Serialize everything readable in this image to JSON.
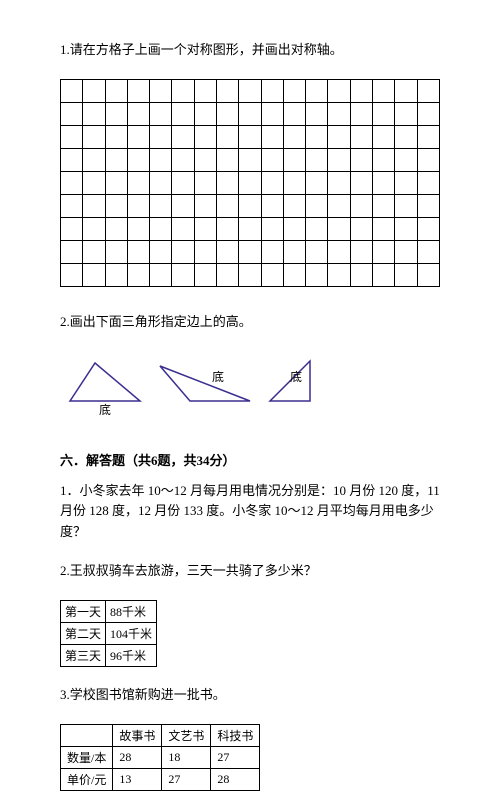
{
  "q1": {
    "text": "1.请在方格子上画一个对称图形，并画出对称轴。",
    "grid": {
      "rows": 9,
      "cols": 17
    }
  },
  "q2": {
    "text": "2.画出下面三角形指定边上的高。",
    "labels": {
      "base": "底"
    },
    "stroke": "#3a2e8f"
  },
  "section6": {
    "header": "六．解答题（共6题，共34分）"
  },
  "q6_1": {
    "text": "1．小冬家去年 10～12 月每月用电情况分别是：10 月份 120 度，11 月份 128 度，12 月份 133 度。小冬家 10～12 月平均每月用电多少度？"
  },
  "q6_2": {
    "text": "2.王叔叔骑车去旅游，三天一共骑了多少米？",
    "table": {
      "rows": [
        [
          "第一天",
          "88千米"
        ],
        [
          "第二天",
          "104千米"
        ],
        [
          "第三天",
          "96千米"
        ]
      ]
    }
  },
  "q6_3": {
    "text": "3.学校图书馆新购进一批书。",
    "table": {
      "headers": [
        "",
        "故事书",
        "文艺书",
        "科技书"
      ],
      "rows": [
        [
          "数量/本",
          "28",
          "18",
          "27"
        ],
        [
          "单价/元",
          "13",
          "27",
          "28"
        ]
      ]
    }
  }
}
